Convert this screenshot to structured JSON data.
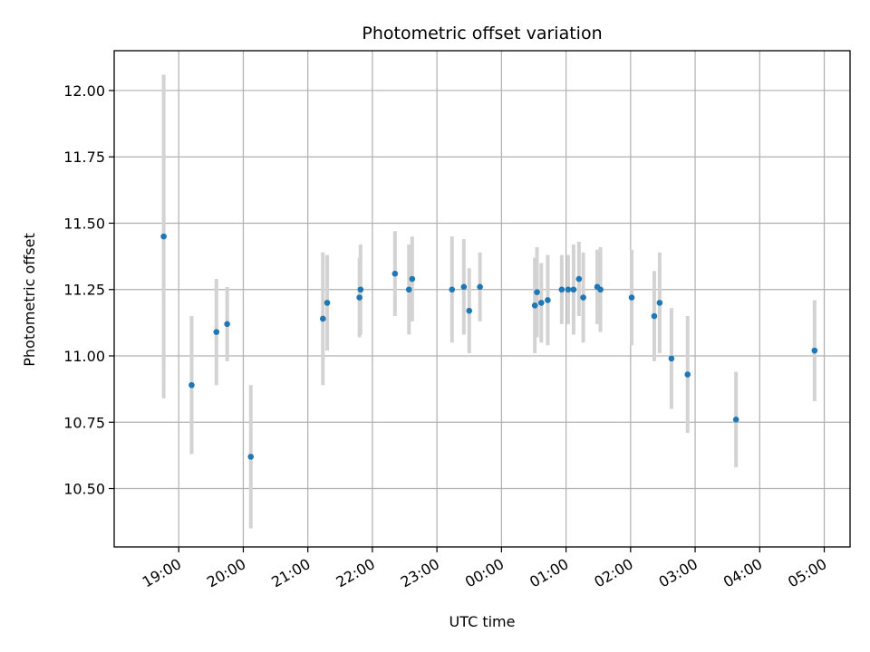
{
  "chart_data": {
    "type": "scatter",
    "title": "Photometric offset variation",
    "xlabel": "UTC time",
    "ylabel": "Photometric offset",
    "x_tick_labels": [
      "19:00",
      "20:00",
      "21:00",
      "22:00",
      "23:00",
      "00:00",
      "01:00",
      "02:00",
      "03:00",
      "04:00",
      "05:00"
    ],
    "x_tick_hours": [
      19,
      20,
      21,
      22,
      23,
      24,
      25,
      26,
      27,
      28,
      29
    ],
    "xlim_hours": [
      18.0,
      29.4
    ],
    "y_ticks": [
      10.5,
      10.75,
      11.0,
      11.25,
      11.5,
      11.75,
      12.0
    ],
    "y_tick_labels": [
      "10.50",
      "10.75",
      "11.00",
      "11.25",
      "11.50",
      "11.75",
      "12.00"
    ],
    "ylim": [
      10.28,
      12.15
    ],
    "grid": true,
    "colors": {
      "point": "#1f77b4",
      "error_bar": "#d3d3d3",
      "grid": "#b0b0b0"
    },
    "points": [
      {
        "t": "18:46",
        "y": 11.45,
        "err": 0.61
      },
      {
        "t": "19:12",
        "y": 10.89,
        "err": 0.26
      },
      {
        "t": "19:35",
        "y": 11.09,
        "err": 0.2
      },
      {
        "t": "19:45",
        "y": 11.12,
        "err": 0.14
      },
      {
        "t": "20:07",
        "y": 10.62,
        "err": 0.27
      },
      {
        "t": "21:14",
        "y": 11.14,
        "err": 0.25
      },
      {
        "t": "21:18",
        "y": 11.2,
        "err": 0.18
      },
      {
        "t": "21:48",
        "y": 11.22,
        "err": 0.15
      },
      {
        "t": "21:49",
        "y": 11.25,
        "err": 0.17
      },
      {
        "t": "22:21",
        "y": 11.31,
        "err": 0.16
      },
      {
        "t": "22:34",
        "y": 11.25,
        "err": 0.17
      },
      {
        "t": "22:37",
        "y": 11.29,
        "err": 0.16
      },
      {
        "t": "23:14",
        "y": 11.25,
        "err": 0.2
      },
      {
        "t": "23:25",
        "y": 11.26,
        "err": 0.18
      },
      {
        "t": "23:30",
        "y": 11.17,
        "err": 0.16
      },
      {
        "t": "23:40",
        "y": 11.26,
        "err": 0.13
      },
      {
        "t": "00:31",
        "y": 11.19,
        "err": 0.18
      },
      {
        "t": "00:33",
        "y": 11.24,
        "err": 0.17
      },
      {
        "t": "00:37",
        "y": 11.2,
        "err": 0.15
      },
      {
        "t": "00:43",
        "y": 11.21,
        "err": 0.17
      },
      {
        "t": "00:56",
        "y": 11.25,
        "err": 0.13
      },
      {
        "t": "01:02",
        "y": 11.25,
        "err": 0.13
      },
      {
        "t": "01:07",
        "y": 11.25,
        "err": 0.17
      },
      {
        "t": "01:12",
        "y": 11.29,
        "err": 0.14
      },
      {
        "t": "01:16",
        "y": 11.22,
        "err": 0.17
      },
      {
        "t": "01:29",
        "y": 11.26,
        "err": 0.14
      },
      {
        "t": "01:32",
        "y": 11.25,
        "err": 0.16
      },
      {
        "t": "02:01",
        "y": 11.22,
        "err": 0.18
      },
      {
        "t": "02:22",
        "y": 11.15,
        "err": 0.17
      },
      {
        "t": "02:27",
        "y": 11.2,
        "err": 0.19
      },
      {
        "t": "02:38",
        "y": 10.99,
        "err": 0.19
      },
      {
        "t": "02:53",
        "y": 10.93,
        "err": 0.22
      },
      {
        "t": "03:38",
        "y": 10.76,
        "err": 0.18
      },
      {
        "t": "04:51",
        "y": 11.02,
        "err": 0.19
      }
    ]
  }
}
